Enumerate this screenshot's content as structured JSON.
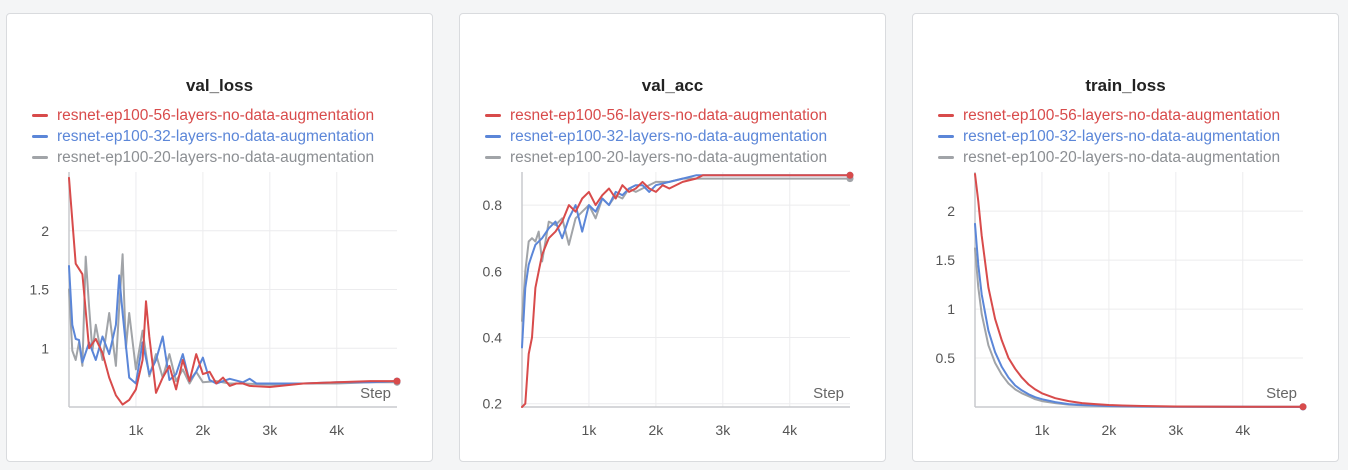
{
  "chart_data": [
    {
      "type": "line",
      "title": "val_loss",
      "xlabel": "Step",
      "ylabel": "",
      "xlim": [
        0,
        4900
      ],
      "ylim": [
        0.5,
        2.5
      ],
      "xticks": [
        1000,
        2000,
        3000,
        4000
      ],
      "xtick_labels": [
        "1k",
        "2k",
        "3k",
        "4k"
      ],
      "yticks": [
        1,
        1.5,
        2
      ],
      "ytick_labels": [
        "1",
        "1.5",
        "2"
      ],
      "grid": true,
      "legend_position": "top-left",
      "series": [
        {
          "name": "resnet-ep100-56-layers-no-data-augmentation",
          "color": "#d84b4b",
          "x": [
            0,
            100,
            200,
            300,
            400,
            500,
            600,
            700,
            800,
            900,
            1000,
            1100,
            1150,
            1200,
            1300,
            1400,
            1500,
            1600,
            1700,
            1800,
            1900,
            2000,
            2100,
            2200,
            2300,
            2400,
            2500,
            2600,
            2700,
            3000,
            3500,
            4000,
            4500,
            4900
          ],
          "y": [
            2.45,
            1.72,
            1.63,
            1.0,
            1.08,
            0.96,
            0.75,
            0.6,
            0.52,
            0.56,
            0.65,
            0.9,
            1.4,
            1.1,
            0.62,
            0.75,
            0.85,
            0.65,
            0.9,
            0.72,
            0.95,
            0.78,
            0.8,
            0.7,
            0.75,
            0.68,
            0.7,
            0.7,
            0.68,
            0.67,
            0.7,
            0.71,
            0.72,
            0.72
          ]
        },
        {
          "name": "resnet-ep100-32-layers-no-data-augmentation",
          "color": "#5b86d8",
          "x": [
            0,
            50,
            100,
            150,
            200,
            300,
            400,
            500,
            600,
            700,
            750,
            800,
            900,
            1000,
            1100,
            1200,
            1300,
            1400,
            1500,
            1600,
            1700,
            1800,
            1900,
            2000,
            2100,
            2200,
            2400,
            2600,
            2700,
            2800,
            3000,
            3500,
            4000,
            4500,
            4900
          ],
          "y": [
            1.7,
            1.2,
            1.08,
            1.07,
            0.88,
            1.05,
            0.9,
            1.1,
            0.95,
            1.2,
            1.62,
            1.3,
            0.75,
            0.7,
            1.05,
            0.78,
            0.9,
            1.1,
            0.73,
            0.78,
            0.95,
            0.72,
            0.8,
            0.92,
            0.73,
            0.7,
            0.74,
            0.71,
            0.74,
            0.7,
            0.7,
            0.7,
            0.71,
            0.71,
            0.72
          ]
        },
        {
          "name": "resnet-ep100-20-layers-no-data-augmentation",
          "color": "#a1a4a8",
          "x": [
            0,
            50,
            100,
            150,
            200,
            250,
            300,
            350,
            400,
            500,
            600,
            700,
            750,
            800,
            850,
            900,
            1000,
            1100,
            1200,
            1300,
            1400,
            1500,
            1600,
            1700,
            1800,
            1900,
            2000,
            2200,
            2400,
            2600,
            3000,
            3500,
            4000,
            4500,
            4900
          ],
          "y": [
            1.5,
            0.98,
            0.9,
            1.05,
            0.85,
            1.78,
            1.35,
            0.98,
            1.2,
            0.9,
            1.3,
            0.85,
            1.35,
            1.8,
            1.0,
            1.3,
            0.82,
            1.15,
            0.76,
            0.95,
            0.75,
            0.95,
            0.72,
            0.82,
            0.7,
            0.8,
            0.71,
            0.72,
            0.7,
            0.7,
            0.69,
            0.7,
            0.7,
            0.71,
            0.71
          ]
        }
      ]
    },
    {
      "type": "line",
      "title": "val_acc",
      "xlabel": "Step",
      "ylabel": "",
      "xlim": [
        0,
        4900
      ],
      "ylim": [
        0.19,
        0.9
      ],
      "xticks": [
        1000,
        2000,
        3000,
        4000
      ],
      "xtick_labels": [
        "1k",
        "2k",
        "3k",
        "4k"
      ],
      "yticks": [
        0.2,
        0.4,
        0.6,
        0.8
      ],
      "ytick_labels": [
        "0.2",
        "0.4",
        "0.6",
        "0.8"
      ],
      "grid": true,
      "legend_position": "top-left",
      "series": [
        {
          "name": "resnet-ep100-56-layers-no-data-augmentation",
          "color": "#d84b4b",
          "x": [
            0,
            50,
            100,
            150,
            200,
            250,
            300,
            400,
            500,
            600,
            700,
            800,
            900,
            1000,
            1100,
            1200,
            1300,
            1400,
            1500,
            1600,
            1700,
            1800,
            1900,
            2000,
            2100,
            2200,
            2400,
            2600,
            2700,
            2800,
            3000,
            3500,
            4000,
            4500,
            4900
          ],
          "y": [
            0.19,
            0.2,
            0.35,
            0.4,
            0.55,
            0.6,
            0.65,
            0.7,
            0.72,
            0.75,
            0.8,
            0.78,
            0.82,
            0.84,
            0.8,
            0.83,
            0.85,
            0.82,
            0.86,
            0.84,
            0.85,
            0.87,
            0.85,
            0.84,
            0.86,
            0.85,
            0.87,
            0.88,
            0.89,
            0.89,
            0.89,
            0.89,
            0.89,
            0.89,
            0.89
          ]
        },
        {
          "name": "resnet-ep100-32-layers-no-data-augmentation",
          "color": "#5b86d8",
          "x": [
            0,
            50,
            100,
            150,
            200,
            300,
            400,
            500,
            600,
            700,
            800,
            900,
            1000,
            1100,
            1200,
            1300,
            1400,
            1500,
            1600,
            1700,
            1800,
            1900,
            2000,
            2200,
            2400,
            2600,
            2700,
            2800,
            3000,
            3500,
            4000,
            4500,
            4900
          ],
          "y": [
            0.37,
            0.55,
            0.62,
            0.65,
            0.68,
            0.7,
            0.73,
            0.75,
            0.7,
            0.76,
            0.8,
            0.72,
            0.8,
            0.78,
            0.82,
            0.8,
            0.84,
            0.83,
            0.85,
            0.86,
            0.86,
            0.84,
            0.86,
            0.87,
            0.88,
            0.89,
            0.89,
            0.89,
            0.89,
            0.89,
            0.89,
            0.89,
            0.89
          ]
        },
        {
          "name": "resnet-ep100-20-layers-no-data-augmentation",
          "color": "#a1a4a8",
          "x": [
            0,
            50,
            100,
            150,
            200,
            250,
            300,
            400,
            500,
            600,
            700,
            800,
            900,
            1000,
            1100,
            1200,
            1300,
            1400,
            1500,
            1600,
            1700,
            1800,
            2000,
            2200,
            2400,
            2600,
            2800,
            3000,
            3500,
            4000,
            4500,
            4900
          ],
          "y": [
            0.45,
            0.6,
            0.69,
            0.7,
            0.69,
            0.72,
            0.63,
            0.75,
            0.74,
            0.76,
            0.68,
            0.76,
            0.78,
            0.8,
            0.76,
            0.82,
            0.8,
            0.83,
            0.82,
            0.85,
            0.84,
            0.85,
            0.87,
            0.87,
            0.88,
            0.88,
            0.88,
            0.88,
            0.88,
            0.88,
            0.88,
            0.88
          ]
        }
      ]
    },
    {
      "type": "line",
      "title": "train_loss",
      "xlabel": "Step",
      "ylabel": "",
      "xlim": [
        0,
        4900
      ],
      "ylim": [
        0,
        2.4
      ],
      "xticks": [
        1000,
        2000,
        3000,
        4000
      ],
      "xtick_labels": [
        "1k",
        "2k",
        "3k",
        "4k"
      ],
      "yticks": [
        0.5,
        1,
        1.5,
        2
      ],
      "ytick_labels": [
        "0.5",
        "1",
        "1.5",
        "2"
      ],
      "grid": true,
      "legend_position": "top-left",
      "series": [
        {
          "name": "resnet-ep100-56-layers-no-data-augmentation",
          "color": "#d84b4b",
          "x": [
            0,
            50,
            100,
            200,
            300,
            400,
            500,
            600,
            700,
            800,
            900,
            1000,
            1200,
            1400,
            1600,
            1800,
            2000,
            2200,
            2500,
            3000,
            4000,
            4900
          ],
          "y": [
            2.38,
            2.1,
            1.75,
            1.22,
            0.9,
            0.68,
            0.5,
            0.39,
            0.3,
            0.23,
            0.18,
            0.14,
            0.09,
            0.06,
            0.04,
            0.03,
            0.02,
            0.015,
            0.01,
            0.005,
            0.003,
            0.002
          ]
        },
        {
          "name": "resnet-ep100-32-layers-no-data-augmentation",
          "color": "#5b86d8",
          "x": [
            0,
            50,
            100,
            200,
            300,
            400,
            500,
            600,
            700,
            800,
            900,
            1000,
            1200,
            1400,
            1600,
            1800,
            2000,
            2200,
            2500,
            3000,
            4000,
            4900
          ],
          "y": [
            1.87,
            1.45,
            1.15,
            0.78,
            0.56,
            0.41,
            0.3,
            0.22,
            0.17,
            0.13,
            0.1,
            0.08,
            0.05,
            0.03,
            0.02,
            0.015,
            0.01,
            0.008,
            0.005,
            0.003,
            0.002,
            0.001
          ]
        },
        {
          "name": "resnet-ep100-20-layers-no-data-augmentation",
          "color": "#a1a4a8",
          "x": [
            0,
            50,
            100,
            200,
            300,
            400,
            500,
            600,
            700,
            800,
            900,
            1000,
            1200,
            1400,
            1600,
            1800,
            2000,
            2200,
            2500,
            3000,
            4000,
            4900
          ],
          "y": [
            1.62,
            1.22,
            0.95,
            0.63,
            0.45,
            0.33,
            0.24,
            0.18,
            0.14,
            0.11,
            0.08,
            0.06,
            0.04,
            0.025,
            0.018,
            0.012,
            0.008,
            0.006,
            0.004,
            0.002,
            0.001,
            0.001
          ]
        }
      ]
    }
  ]
}
